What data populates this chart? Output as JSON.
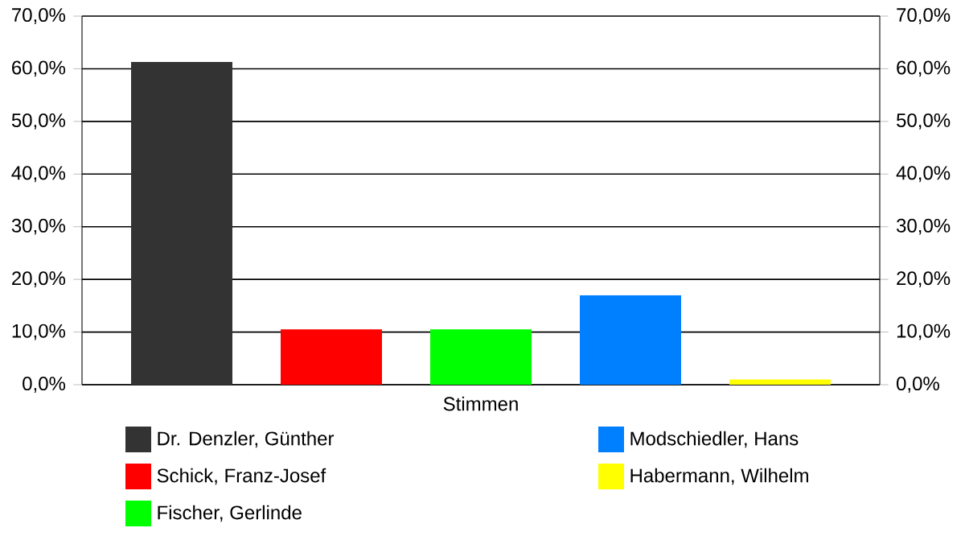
{
  "chart_data": {
    "type": "bar",
    "categories": [
      "Stimmen"
    ],
    "series": [
      {
        "name": "Dr. Denzler, Günther",
        "color": "#333333",
        "values": [
          61.3
        ]
      },
      {
        "name": "Schick, Franz-Josef",
        "color": "#ff0000",
        "values": [
          10.5
        ]
      },
      {
        "name": "Fischer, Gerlinde",
        "color": "#00ff00",
        "values": [
          10.5
        ]
      },
      {
        "name": "Modschiedler, Hans",
        "color": "#0080ff",
        "values": [
          17.0
        ]
      },
      {
        "name": "Habermann, Wilhelm",
        "color": "#ffff00",
        "values": [
          1.0
        ]
      }
    ],
    "ylim": [
      0,
      70
    ],
    "yticks": [
      {
        "value": 0,
        "label": "0,0%"
      },
      {
        "value": 10,
        "label": "10,0%"
      },
      {
        "value": 20,
        "label": "20,0%"
      },
      {
        "value": 30,
        "label": "30,0%"
      },
      {
        "value": 40,
        "label": "40,0%"
      },
      {
        "value": 50,
        "label": "50,0%"
      },
      {
        "value": 60,
        "label": "60,0%"
      },
      {
        "value": 70,
        "label": "70,0%"
      }
    ],
    "grid": "y",
    "legend": "bottom"
  }
}
